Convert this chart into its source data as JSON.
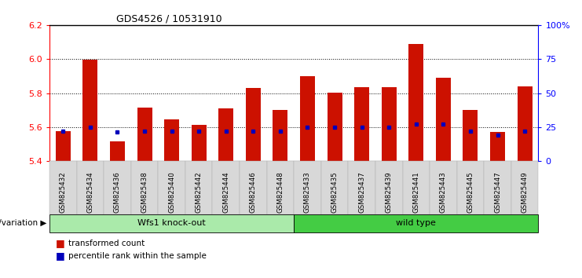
{
  "title": "GDS4526 / 10531910",
  "samples": [
    "GSM825432",
    "GSM825434",
    "GSM825436",
    "GSM825438",
    "GSM825440",
    "GSM825442",
    "GSM825444",
    "GSM825446",
    "GSM825448",
    "GSM825433",
    "GSM825435",
    "GSM825437",
    "GSM825439",
    "GSM825441",
    "GSM825443",
    "GSM825445",
    "GSM825447",
    "GSM825449"
  ],
  "red_values": [
    5.575,
    5.995,
    5.515,
    5.715,
    5.645,
    5.615,
    5.71,
    5.83,
    5.7,
    5.9,
    5.805,
    5.835,
    5.835,
    6.09,
    5.89,
    5.7,
    5.57,
    5.84
  ],
  "blue_values": [
    5.575,
    5.6,
    5.57,
    5.575,
    5.575,
    5.575,
    5.575,
    5.575,
    5.575,
    5.6,
    5.6,
    5.6,
    5.6,
    5.62,
    5.62,
    5.575,
    5.555,
    5.575
  ],
  "ymin": 5.4,
  "ymax": 6.2,
  "yticks_left": [
    5.4,
    5.6,
    5.8,
    6.0,
    6.2
  ],
  "yticks_right_vals": [
    0,
    25,
    50,
    75,
    100
  ],
  "yticks_right_labels": [
    "0",
    "25",
    "50",
    "75",
    "100%"
  ],
  "group1_label": "Wfs1 knock-out",
  "group2_label": "wild type",
  "group1_color": "#AAEAAA",
  "group2_color": "#44CC44",
  "bar_color": "#CC1100",
  "blue_color": "#0000BB",
  "legend_red": "transformed count",
  "legend_blue": "percentile rank within the sample",
  "genotype_label": "genotype/variation",
  "bar_width": 0.55,
  "n_group1": 9,
  "n_group2": 9
}
